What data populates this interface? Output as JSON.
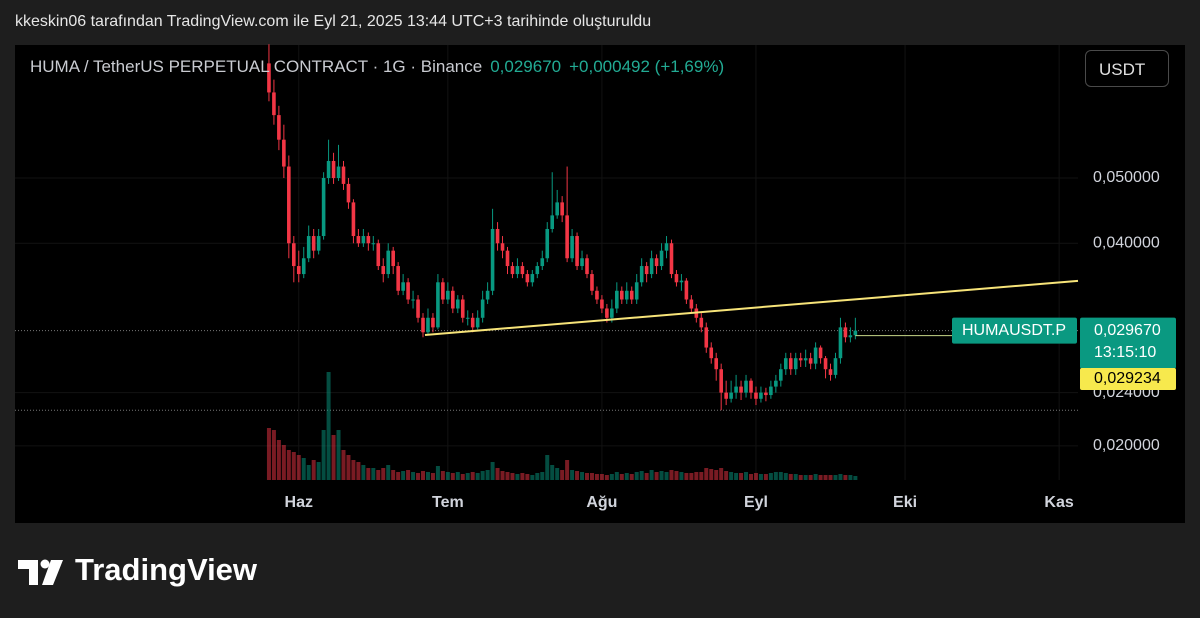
{
  "caption": "kkeskin06 tarafından TradingView.com ile Eyl 21, 2025 13:44 UTC+3 tarihinde oluşturuldu",
  "header": {
    "symbol": "HUMA / TetherUS PERPETUAL CONTRACT · 1G · Binance",
    "price": "0,029670",
    "change": "+0,000492 (+1,69%)"
  },
  "currency_button": "USDT",
  "brand": "TradingView",
  "chart_data": {
    "type": "candlestick",
    "up_color": "#089981",
    "down_color": "#f23645",
    "log_scale": true,
    "ylim": [
      0.0178,
      0.0788
    ],
    "yticks": [
      {
        "value": 0.02,
        "label": "0,020000"
      },
      {
        "value": 0.024,
        "label": "0,024000"
      },
      {
        "value": 0.04,
        "label": "0,040000"
      },
      {
        "value": 0.05,
        "label": "0,050000"
      }
    ],
    "xlim": [
      -51.1,
      162.8
    ],
    "xticks": [
      {
        "value": 6,
        "label": "Haz"
      },
      {
        "value": 36,
        "label": "Tem"
      },
      {
        "value": 67,
        "label": "Ağu"
      },
      {
        "value": 98,
        "label": "Eyl"
      },
      {
        "value": 128,
        "label": "Eki"
      },
      {
        "value": 159,
        "label": "Kas"
      }
    ],
    "open": [
      0.074,
      0.067,
      0.062,
      0.057,
      0.052,
      0.04,
      0.037,
      0.036,
      0.038,
      0.041,
      0.039,
      0.041,
      0.05,
      0.053,
      0.05,
      0.052,
      0.049,
      0.046,
      0.041,
      0.04,
      0.041,
      0.04,
      0.04,
      0.037,
      0.036,
      0.039,
      0.037,
      0.034,
      0.035,
      0.033,
      0.033,
      0.031,
      0.0295,
      0.031,
      0.03,
      0.035,
      0.033,
      0.034,
      0.032,
      0.033,
      0.031,
      0.031,
      0.03,
      0.031,
      0.033,
      0.034,
      0.042,
      0.04,
      0.039,
      0.037,
      0.036,
      0.037,
      0.036,
      0.035,
      0.036,
      0.037,
      0.038,
      0.042,
      0.044,
      0.046,
      0.044,
      0.038,
      0.041,
      0.037,
      0.038,
      0.036,
      0.034,
      0.033,
      0.032,
      0.031,
      0.032,
      0.034,
      0.033,
      0.034,
      0.033,
      0.035,
      0.037,
      0.036,
      0.038,
      0.037,
      0.039,
      0.04,
      0.036,
      0.035,
      0.0352,
      0.033,
      0.032,
      0.031,
      0.03,
      0.028,
      0.027,
      0.026,
      0.024,
      0.0235,
      0.024,
      0.0245,
      0.024,
      0.025,
      0.024,
      0.0235,
      0.024,
      0.0238,
      0.0245,
      0.025,
      0.026,
      0.027,
      0.026,
      0.027,
      0.0268,
      0.027,
      0.0265,
      0.028,
      0.027,
      0.026,
      0.0255,
      0.027,
      0.03,
      0.029,
      0.0292
    ],
    "high": [
      0.079,
      0.07,
      0.064,
      0.06,
      0.054,
      0.041,
      0.039,
      0.0395,
      0.0425,
      0.042,
      0.042,
      0.051,
      0.057,
      0.0545,
      0.056,
      0.053,
      0.05,
      0.0465,
      0.042,
      0.042,
      0.0415,
      0.041,
      0.0405,
      0.038,
      0.04,
      0.0395,
      0.0375,
      0.036,
      0.0355,
      0.034,
      0.0335,
      0.0315,
      0.032,
      0.0315,
      0.036,
      0.0355,
      0.035,
      0.0345,
      0.0335,
      0.0335,
      0.0318,
      0.0315,
      0.0318,
      0.034,
      0.035,
      0.045,
      0.043,
      0.041,
      0.0395,
      0.0375,
      0.038,
      0.0375,
      0.0365,
      0.0365,
      0.0375,
      0.039,
      0.043,
      0.051,
      0.048,
      0.047,
      0.052,
      0.042,
      0.0415,
      0.039,
      0.0385,
      0.0365,
      0.0345,
      0.0335,
      0.0325,
      0.033,
      0.035,
      0.0345,
      0.035,
      0.0345,
      0.036,
      0.038,
      0.0375,
      0.039,
      0.0385,
      0.04,
      0.041,
      0.0405,
      0.0365,
      0.036,
      0.0355,
      0.0335,
      0.0325,
      0.0315,
      0.0305,
      0.0285,
      0.0275,
      0.0265,
      0.025,
      0.025,
      0.0255,
      0.025,
      0.0255,
      0.0252,
      0.0245,
      0.0245,
      0.0244,
      0.025,
      0.0255,
      0.0265,
      0.0275,
      0.0275,
      0.0275,
      0.0275,
      0.0278,
      0.0275,
      0.0285,
      0.0282,
      0.0272,
      0.0265,
      0.0275,
      0.031,
      0.0305,
      0.03,
      0.031
    ],
    "low": [
      0.065,
      0.06,
      0.055,
      0.05,
      0.038,
      0.035,
      0.035,
      0.0355,
      0.0375,
      0.038,
      0.0385,
      0.0405,
      0.049,
      0.049,
      0.0495,
      0.048,
      0.045,
      0.04,
      0.0395,
      0.0395,
      0.039,
      0.039,
      0.0365,
      0.035,
      0.0355,
      0.036,
      0.0335,
      0.0335,
      0.0325,
      0.032,
      0.0305,
      0.029,
      0.0292,
      0.0295,
      0.0298,
      0.0325,
      0.0325,
      0.0315,
      0.0315,
      0.0305,
      0.0302,
      0.0295,
      0.0298,
      0.0305,
      0.0325,
      0.0335,
      0.039,
      0.038,
      0.036,
      0.0355,
      0.0355,
      0.0355,
      0.0345,
      0.0345,
      0.0355,
      0.0365,
      0.0375,
      0.0415,
      0.0435,
      0.043,
      0.0375,
      0.0375,
      0.0365,
      0.0365,
      0.0355,
      0.0335,
      0.0325,
      0.0315,
      0.0305,
      0.0305,
      0.0315,
      0.0325,
      0.0325,
      0.0325,
      0.0325,
      0.0345,
      0.035,
      0.0355,
      0.036,
      0.0365,
      0.038,
      0.0355,
      0.0345,
      0.034,
      0.0325,
      0.0315,
      0.0305,
      0.0295,
      0.0275,
      0.0265,
      0.025,
      0.0226,
      0.023,
      0.0232,
      0.0235,
      0.0234,
      0.0236,
      0.0235,
      0.023,
      0.0232,
      0.0233,
      0.0235,
      0.024,
      0.0245,
      0.0255,
      0.0255,
      0.0255,
      0.0262,
      0.0262,
      0.026,
      0.026,
      0.0265,
      0.0252,
      0.025,
      0.0252,
      0.0265,
      0.0285,
      0.0285,
      0.0288
    ],
    "close": [
      0.067,
      0.062,
      0.057,
      0.052,
      0.04,
      0.037,
      0.036,
      0.038,
      0.041,
      0.039,
      0.041,
      0.05,
      0.053,
      0.05,
      0.052,
      0.049,
      0.046,
      0.041,
      0.04,
      0.041,
      0.04,
      0.04,
      0.037,
      0.036,
      0.039,
      0.037,
      0.034,
      0.035,
      0.033,
      0.033,
      0.031,
      0.0295,
      0.031,
      0.03,
      0.035,
      0.033,
      0.034,
      0.032,
      0.033,
      0.031,
      0.031,
      0.03,
      0.031,
      0.033,
      0.034,
      0.042,
      0.04,
      0.039,
      0.037,
      0.036,
      0.037,
      0.036,
      0.035,
      0.036,
      0.037,
      0.038,
      0.042,
      0.044,
      0.046,
      0.044,
      0.038,
      0.041,
      0.037,
      0.038,
      0.036,
      0.034,
      0.033,
      0.032,
      0.031,
      0.032,
      0.034,
      0.033,
      0.034,
      0.033,
      0.035,
      0.037,
      0.036,
      0.038,
      0.037,
      0.039,
      0.04,
      0.036,
      0.035,
      0.0352,
      0.033,
      0.032,
      0.031,
      0.03,
      0.028,
      0.027,
      0.026,
      0.024,
      0.0235,
      0.024,
      0.0245,
      0.024,
      0.025,
      0.024,
      0.0235,
      0.024,
      0.0238,
      0.0245,
      0.025,
      0.026,
      0.027,
      0.026,
      0.027,
      0.0268,
      0.027,
      0.0265,
      0.028,
      0.027,
      0.026,
      0.0255,
      0.027,
      0.03,
      0.029,
      0.0292,
      0.02967
    ],
    "volume": [
      52,
      50,
      40,
      35,
      30,
      28,
      25,
      22,
      15,
      20,
      18,
      50,
      108,
      45,
      50,
      30,
      25,
      20,
      18,
      15,
      12,
      12,
      10,
      12,
      15,
      10,
      8,
      9,
      10,
      8,
      7,
      9,
      8,
      7,
      14,
      9,
      8,
      7,
      8,
      6,
      7,
      8,
      7,
      9,
      10,
      18,
      12,
      9,
      8,
      7,
      6,
      7,
      6,
      5,
      7,
      8,
      25,
      15,
      12,
      10,
      20,
      10,
      9,
      8,
      7,
      7,
      6,
      6,
      5,
      6,
      8,
      6,
      7,
      6,
      8,
      9,
      7,
      10,
      8,
      9,
      8,
      10,
      9,
      8,
      7,
      7,
      8,
      8,
      12,
      11,
      10,
      12,
      9,
      8,
      7,
      7,
      8,
      6,
      7,
      6,
      6,
      7,
      8,
      8,
      7,
      6,
      6,
      5,
      5,
      5,
      6,
      5,
      5,
      5,
      5,
      6,
      5,
      5,
      4
    ],
    "trendline": {
      "x": [
        31.4,
        162.8
      ],
      "y": [
        0.02923,
        0.03517
      ],
      "color": "#f7e479"
    },
    "price_lines": [
      0.02967,
      0.0226
    ],
    "labels": {
      "symbol": "HUMAUSDT.P",
      "last_price": "0,029670",
      "countdown": "13:15:10",
      "line_price": "0,029234"
    }
  }
}
